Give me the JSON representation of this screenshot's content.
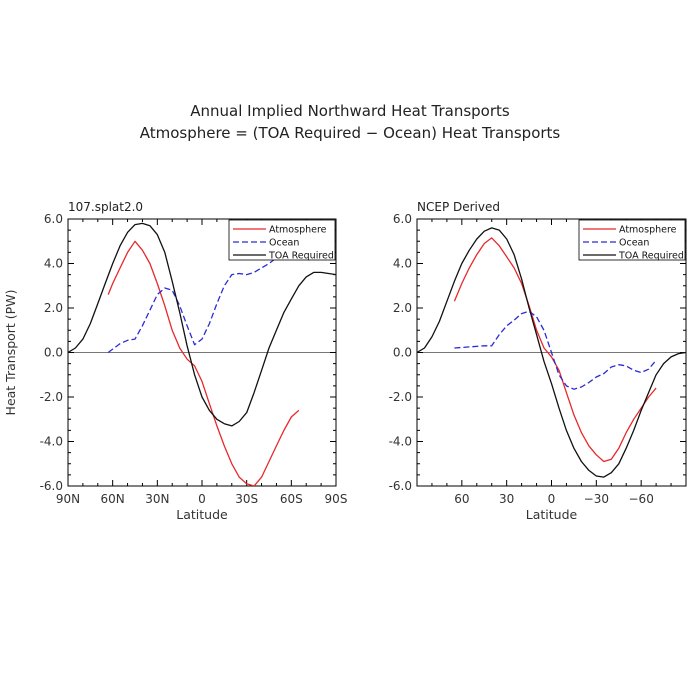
{
  "figure": {
    "title_line1": "Annual Implied Northward Heat Transports",
    "title_line2": "Atmosphere = (TOA Required − Ocean) Heat Transports"
  },
  "chart_data": [
    {
      "type": "line",
      "title": "107.splat2.0",
      "xlabel": "Latitude",
      "ylabel": "Heat Transport (PW)",
      "xlim": [
        90,
        -90
      ],
      "ylim": [
        -6,
        6
      ],
      "x_ticks": [
        90,
        60,
        30,
        0,
        -30,
        -60,
        -90
      ],
      "x_tick_labels": [
        "90N",
        "60N",
        "30N",
        "0",
        "30S",
        "60S",
        "90S"
      ],
      "y_ticks": [
        -6,
        -4,
        -2,
        0,
        2,
        4,
        6
      ],
      "y_tick_labels": [
        "-6.0",
        "-4.0",
        "-2.0",
        "0.0",
        "2.0",
        "4.0",
        "6.0"
      ],
      "legend_position": "top-right",
      "grid": false,
      "zero_line": true,
      "series": [
        {
          "name": "Atmosphere",
          "color": "#e8282b",
          "dash": "solid",
          "x": [
            63,
            60,
            55,
            50,
            45,
            40,
            35,
            30,
            25,
            20,
            15,
            10,
            5,
            0,
            -5,
            -10,
            -15,
            -20,
            -25,
            -30,
            -35,
            -40,
            -45,
            -50,
            -55,
            -60,
            -65
          ],
          "y": [
            2.6,
            3.1,
            3.8,
            4.5,
            5.0,
            4.6,
            4.0,
            3.1,
            2.1,
            1.0,
            0.2,
            -0.3,
            -0.6,
            -1.3,
            -2.3,
            -3.3,
            -4.2,
            -5.0,
            -5.6,
            -5.9,
            -6.0,
            -5.6,
            -4.9,
            -4.2,
            -3.5,
            -2.9,
            -2.6
          ]
        },
        {
          "name": "Ocean",
          "color": "#2b2bd8",
          "dash": "dashed",
          "x": [
            63,
            55,
            50,
            45,
            40,
            35,
            30,
            25,
            20,
            15,
            10,
            5,
            0,
            -5,
            -10,
            -15,
            -20,
            -25,
            -30,
            -35,
            -40,
            -45,
            -50,
            -55,
            -60,
            -65,
            -70
          ],
          "y": [
            0.0,
            0.4,
            0.55,
            0.6,
            1.2,
            1.9,
            2.6,
            2.9,
            2.8,
            2.1,
            1.2,
            0.35,
            0.6,
            1.3,
            2.2,
            3.0,
            3.5,
            3.55,
            3.5,
            3.6,
            3.8,
            4.0,
            4.25,
            4.5,
            4.55,
            4.6,
            4.5
          ]
        },
        {
          "name": "TOA Required",
          "color": "#111111",
          "dash": "solid",
          "x": [
            90,
            85,
            80,
            75,
            70,
            65,
            60,
            55,
            50,
            45,
            40,
            35,
            30,
            25,
            20,
            15,
            10,
            5,
            0,
            -5,
            -10,
            -15,
            -20,
            -25,
            -30,
            -35,
            -40,
            -45,
            -50,
            -55,
            -60,
            -65,
            -70,
            -75,
            -80,
            -85,
            -90
          ],
          "y": [
            0.0,
            0.2,
            0.6,
            1.3,
            2.2,
            3.1,
            4.0,
            4.8,
            5.4,
            5.75,
            5.8,
            5.7,
            5.3,
            4.5,
            3.2,
            1.8,
            0.3,
            -1.0,
            -2.0,
            -2.6,
            -3.0,
            -3.2,
            -3.3,
            -3.1,
            -2.7,
            -1.8,
            -0.8,
            0.2,
            1.0,
            1.8,
            2.4,
            3.0,
            3.4,
            3.6,
            3.6,
            3.55,
            3.5
          ]
        }
      ]
    },
    {
      "type": "line",
      "title": "NCEP Derived",
      "xlabel": "Latitude",
      "ylabel": "",
      "xlim": [
        90,
        -90
      ],
      "ylim": [
        -6,
        6
      ],
      "x_ticks": [
        60,
        30,
        0,
        -30,
        -60
      ],
      "x_tick_labels": [
        "60",
        "30",
        "0",
        "−30",
        "−60"
      ],
      "y_ticks": [
        -6,
        -4,
        -2,
        0,
        2,
        4,
        6
      ],
      "y_tick_labels": [
        "-6.0",
        "-4.0",
        "-2.0",
        "0.0",
        "2.0",
        "4.0",
        "6.0"
      ],
      "legend_position": "top-right",
      "grid": false,
      "zero_line": true,
      "series": [
        {
          "name": "Atmosphere",
          "color": "#e8282b",
          "dash": "solid",
          "x": [
            65,
            60,
            55,
            50,
            45,
            40,
            35,
            30,
            25,
            20,
            15,
            10,
            5,
            0,
            -5,
            -10,
            -15,
            -20,
            -25,
            -30,
            -35,
            -40,
            -45,
            -50,
            -55,
            -60,
            -65,
            -70
          ],
          "y": [
            2.3,
            3.1,
            3.8,
            4.4,
            4.9,
            5.15,
            4.8,
            4.3,
            3.8,
            3.1,
            2.1,
            1.0,
            0.2,
            -0.2,
            -0.8,
            -1.8,
            -2.8,
            -3.6,
            -4.2,
            -4.6,
            -4.9,
            -4.8,
            -4.3,
            -3.6,
            -3.0,
            -2.5,
            -2.0,
            -1.6
          ]
        },
        {
          "name": "Ocean",
          "color": "#2b2bd8",
          "dash": "dashed",
          "x": [
            65,
            55,
            45,
            40,
            35,
            30,
            25,
            20,
            15,
            10,
            5,
            0,
            -5,
            -10,
            -15,
            -20,
            -25,
            -30,
            -35,
            -40,
            -45,
            -50,
            -55,
            -60,
            -65,
            -70
          ],
          "y": [
            0.2,
            0.25,
            0.3,
            0.3,
            0.8,
            1.2,
            1.45,
            1.75,
            1.85,
            1.6,
            1.0,
            0.0,
            -1.0,
            -1.5,
            -1.65,
            -1.55,
            -1.35,
            -1.1,
            -0.95,
            -0.65,
            -0.55,
            -0.6,
            -0.8,
            -0.9,
            -0.75,
            -0.35
          ]
        },
        {
          "name": "TOA Required",
          "color": "#111111",
          "dash": "solid",
          "x": [
            90,
            85,
            80,
            75,
            70,
            65,
            60,
            55,
            50,
            45,
            40,
            35,
            30,
            25,
            20,
            15,
            10,
            5,
            0,
            -5,
            -10,
            -15,
            -20,
            -25,
            -30,
            -35,
            -40,
            -45,
            -50,
            -55,
            -60,
            -65,
            -70,
            -75,
            -80,
            -85,
            -90
          ],
          "y": [
            0.0,
            0.2,
            0.7,
            1.4,
            2.3,
            3.2,
            4.0,
            4.6,
            5.1,
            5.45,
            5.6,
            5.5,
            5.1,
            4.4,
            3.3,
            2.0,
            0.8,
            -0.4,
            -1.4,
            -2.5,
            -3.5,
            -4.3,
            -4.9,
            -5.3,
            -5.55,
            -5.6,
            -5.4,
            -5.0,
            -4.3,
            -3.5,
            -2.6,
            -1.8,
            -1.0,
            -0.5,
            -0.2,
            -0.05,
            0.0
          ]
        }
      ]
    }
  ]
}
